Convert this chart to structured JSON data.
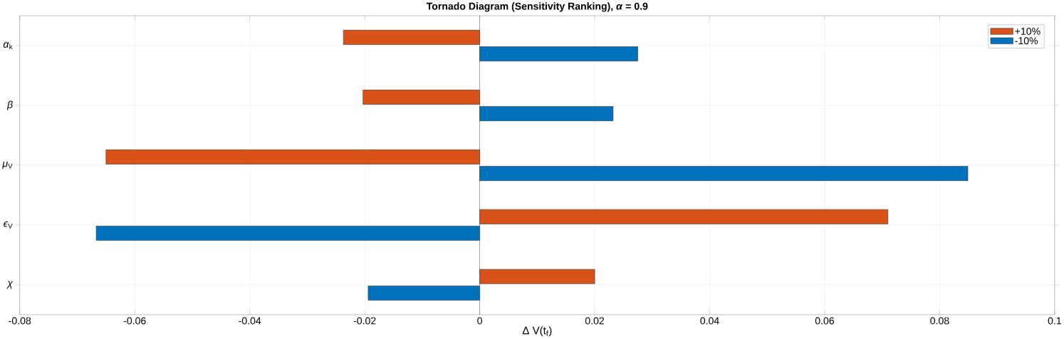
{
  "chart_data": {
    "type": "bar",
    "orientation": "horizontal",
    "title": "Tornado Diagram (Sensitivity Ranking), *α* = 0.9",
    "xlabel": "Δ V(t$_{f}$)",
    "categories": [
      "*α*$_{k}$",
      "*β*",
      "*μ*$_{V}$",
      "*ϵ*$_{V}$",
      "*χ*"
    ],
    "series": [
      {
        "name": "+10%",
        "color": "#d95319",
        "values": [
          -0.0237,
          -0.0203,
          -0.065,
          0.071,
          0.02
        ]
      },
      {
        "name": "-10%",
        "color": "#0072bd",
        "values": [
          0.0275,
          0.0232,
          0.0849,
          -0.0667,
          -0.0194
        ]
      }
    ],
    "xlim": [
      -0.08,
      0.1
    ],
    "xticks": [
      -0.08,
      -0.06,
      -0.04,
      -0.02,
      0,
      0.02,
      0.04,
      0.06,
      0.08,
      0.1
    ],
    "grid": true,
    "legend": "top right"
  }
}
